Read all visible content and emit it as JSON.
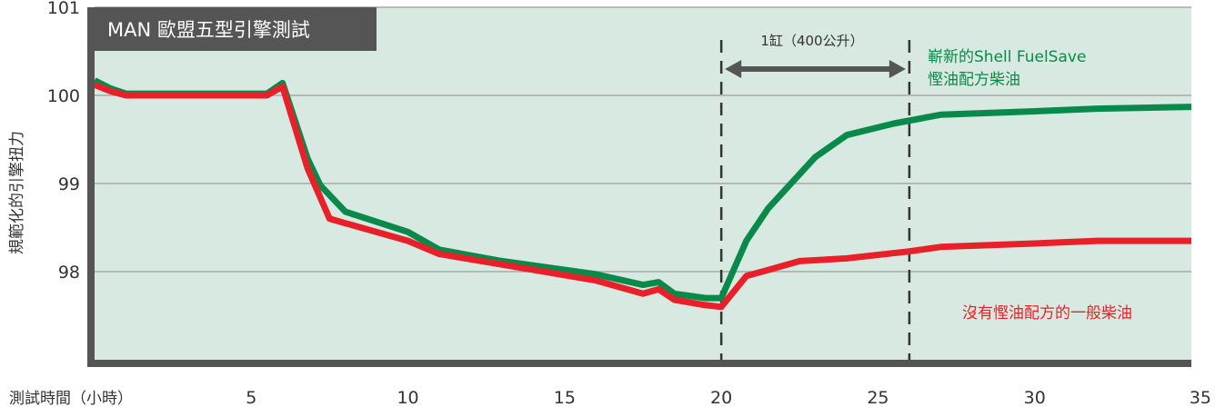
{
  "chart_data": {
    "type": "line",
    "title": "MAN 歐盟五型引擎測試",
    "xlabel": "測試時間（小時）",
    "ylabel": "規範化的引擎扭力",
    "xlim": [
      0,
      35
    ],
    "ylim": [
      97,
      101
    ],
    "x_ticks": [
      "5",
      "10",
      "15",
      "20",
      "25",
      "30",
      "35"
    ],
    "y_ticks": [
      "101",
      "100",
      "99",
      "98"
    ],
    "grid": true,
    "background": "#d7e9e0",
    "series": [
      {
        "name": "嶄新的Shell FuelSave 慳油配方柴油",
        "color": "#0a8a4a",
        "points": [
          [
            0,
            100.17
          ],
          [
            0.5,
            100.08
          ],
          [
            1,
            100.02
          ],
          [
            5.5,
            100.02
          ],
          [
            6,
            100.14
          ],
          [
            6.8,
            99.28
          ],
          [
            7.2,
            98.98
          ],
          [
            8,
            98.68
          ],
          [
            10,
            98.45
          ],
          [
            11,
            98.25
          ],
          [
            13,
            98.12
          ],
          [
            16,
            97.97
          ],
          [
            17.5,
            97.85
          ],
          [
            18,
            97.88
          ],
          [
            18.5,
            97.75
          ],
          [
            19.5,
            97.7
          ],
          [
            20,
            97.7
          ],
          [
            20.8,
            98.35
          ],
          [
            21.5,
            98.72
          ],
          [
            23,
            99.3
          ],
          [
            24,
            99.55
          ],
          [
            25.5,
            99.68
          ],
          [
            27,
            99.78
          ],
          [
            30,
            99.82
          ],
          [
            32,
            99.85
          ],
          [
            35,
            99.87
          ]
        ]
      },
      {
        "name": "沒有慳油配方的一般柴油",
        "color": "#e8202a",
        "points": [
          [
            0,
            100.12
          ],
          [
            0.5,
            100.05
          ],
          [
            1,
            100.0
          ],
          [
            5.5,
            100.0
          ],
          [
            6,
            100.1
          ],
          [
            6.8,
            99.17
          ],
          [
            7.5,
            98.6
          ],
          [
            10,
            98.35
          ],
          [
            11,
            98.2
          ],
          [
            13,
            98.08
          ],
          [
            16,
            97.9
          ],
          [
            17.5,
            97.75
          ],
          [
            18,
            97.8
          ],
          [
            18.5,
            97.68
          ],
          [
            19.5,
            97.62
          ],
          [
            20,
            97.6
          ],
          [
            20.8,
            97.95
          ],
          [
            21.5,
            98.02
          ],
          [
            22.5,
            98.12
          ],
          [
            24,
            98.15
          ],
          [
            26,
            98.23
          ],
          [
            27,
            98.28
          ],
          [
            30,
            98.32
          ],
          [
            32,
            98.35
          ],
          [
            35,
            98.35
          ]
        ]
      }
    ],
    "annotations": [
      {
        "text": "1缸（400公升）",
        "x_range": [
          20,
          26
        ]
      }
    ],
    "vlines": [
      20,
      26
    ],
    "legend_labels": {
      "green_line1": "嶄新的Shell FuelSave",
      "green_line2": "慳油配方柴油",
      "red": "沒有慳油配方的一般柴油"
    }
  }
}
